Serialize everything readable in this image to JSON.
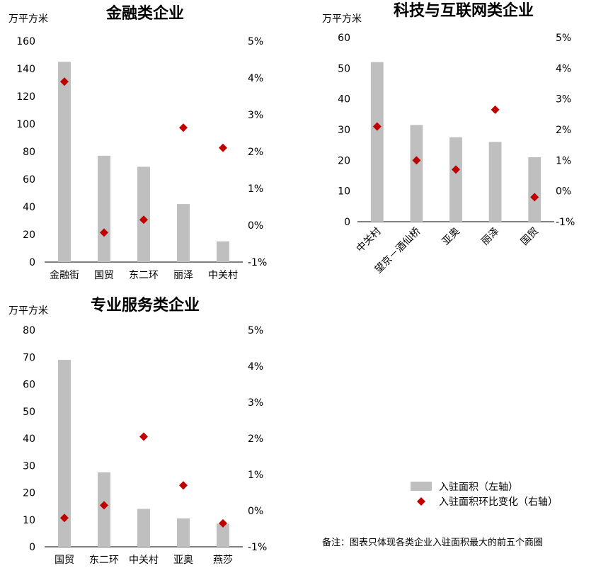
{
  "colors": {
    "bar": "#bfbfbf",
    "point": "#c00000",
    "axis": "#000000"
  },
  "legend": {
    "bar_label": "入驻面积（左轴）",
    "point_label": "入驻面积环比变化（右轴）"
  },
  "note": "备注：图表只体现各类企业入驻面积最大的前五个商圈",
  "chart_data": [
    {
      "type": "bar",
      "title": "金融类企业",
      "ylabel": "万平方米",
      "categories": [
        "金融街",
        "国贸",
        "东二环",
        "丽泽",
        "中关村"
      ],
      "ylim": [
        0,
        160
      ],
      "y_ticks": [
        "0",
        "20",
        "40",
        "60",
        "80",
        "100",
        "120",
        "140",
        "160"
      ],
      "y2lim": [
        -1,
        5
      ],
      "y2_ticks": [
        "-1%",
        "0%",
        "1%",
        "2%",
        "3%",
        "4%",
        "5%"
      ],
      "series": [
        {
          "axis": "left",
          "kind": "bar",
          "values": [
            145,
            77,
            69,
            42,
            15
          ]
        },
        {
          "axis": "right",
          "kind": "point",
          "values": [
            3.9,
            -0.2,
            0.15,
            2.65,
            2.1
          ]
        }
      ],
      "rotate_labels": false
    },
    {
      "type": "bar",
      "title": "科技与互联网类企业",
      "ylabel": "万平方米",
      "categories": [
        "中关村",
        "望京－酒仙桥",
        "亚奥",
        "丽泽",
        "国贸"
      ],
      "ylim": [
        0,
        60
      ],
      "y_ticks": [
        "0",
        "10",
        "20",
        "30",
        "40",
        "50",
        "60"
      ],
      "y2lim": [
        -1,
        5
      ],
      "y2_ticks": [
        "-1%",
        "0%",
        "1%",
        "2%",
        "3%",
        "4%",
        "5%"
      ],
      "series": [
        {
          "axis": "left",
          "kind": "bar",
          "values": [
            52,
            31.5,
            27.5,
            26,
            21
          ]
        },
        {
          "axis": "right",
          "kind": "point",
          "values": [
            2.1,
            1.0,
            0.7,
            2.65,
            -0.2
          ]
        }
      ],
      "rotate_labels": true
    },
    {
      "type": "bar",
      "title": "专业服务类企业",
      "ylabel": "万平方米",
      "categories": [
        "国贸",
        "东二环",
        "中关村",
        "亚奥",
        "燕莎"
      ],
      "ylim": [
        0,
        80
      ],
      "y_ticks": [
        "0",
        "10",
        "20",
        "30",
        "40",
        "50",
        "60",
        "70",
        "80"
      ],
      "y2lim": [
        -1,
        5
      ],
      "y2_ticks": [
        "-1%",
        "0%",
        "1%",
        "2%",
        "3%",
        "4%",
        "5%"
      ],
      "series": [
        {
          "axis": "left",
          "kind": "bar",
          "values": [
            69,
            27.5,
            14,
            10.5,
            8.5
          ]
        },
        {
          "axis": "right",
          "kind": "point",
          "values": [
            -0.2,
            0.15,
            2.05,
            0.7,
            -0.35
          ]
        }
      ],
      "rotate_labels": false
    }
  ]
}
